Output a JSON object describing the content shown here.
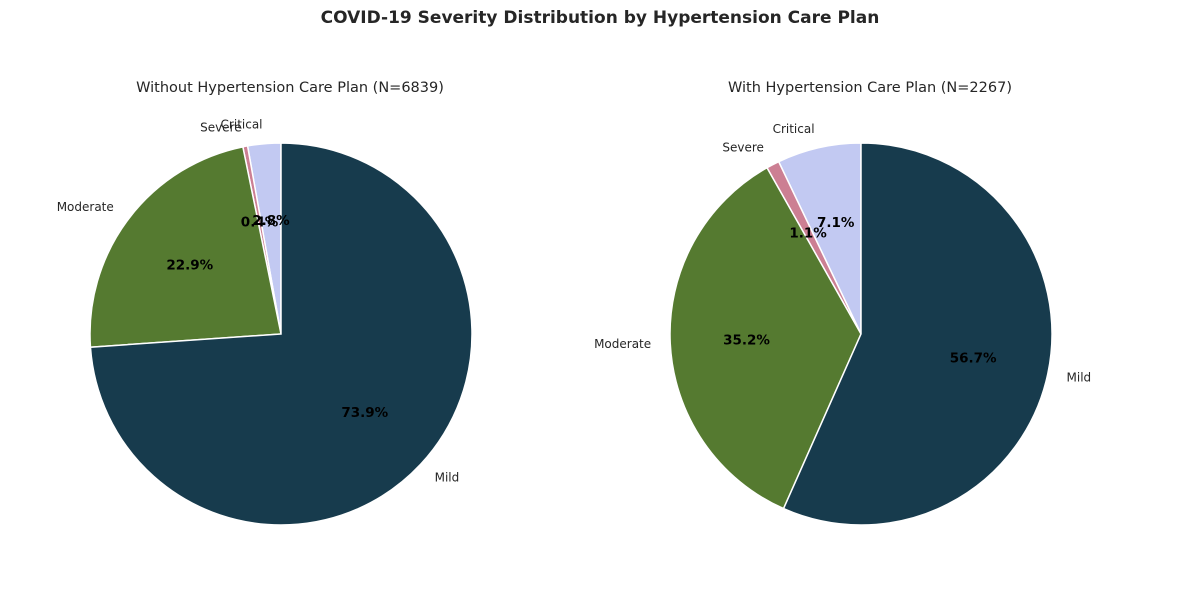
{
  "figure_title": "COVID-19 Severity Distribution by Hypertension Care Plan",
  "chart_data": [
    {
      "type": "pie",
      "title": "Without Hypertension Care Plan (N=6839)",
      "categories": [
        "Critical",
        "Severe",
        "Moderate",
        "Mild"
      ],
      "values": [
        2.8,
        0.4,
        22.9,
        73.9
      ],
      "labels": [
        "2.8%",
        "0.4%",
        "22.9%",
        "73.9%"
      ],
      "colors": [
        "#c2c9f2",
        "#cc7f93",
        "#557a30",
        "#173b4d"
      ],
      "start_angle": 90,
      "direction": "counterclockwise"
    },
    {
      "type": "pie",
      "title": "With Hypertension Care Plan (N=2267)",
      "categories": [
        "Critical",
        "Severe",
        "Moderate",
        "Mild"
      ],
      "values": [
        7.1,
        1.1,
        35.2,
        56.7
      ],
      "labels": [
        "7.1%",
        "1.1%",
        "35.2%",
        "56.7%"
      ],
      "colors": [
        "#c2c9f2",
        "#cc7f93",
        "#557a30",
        "#173b4d"
      ],
      "start_angle": 90,
      "direction": "counterclockwise"
    }
  ]
}
